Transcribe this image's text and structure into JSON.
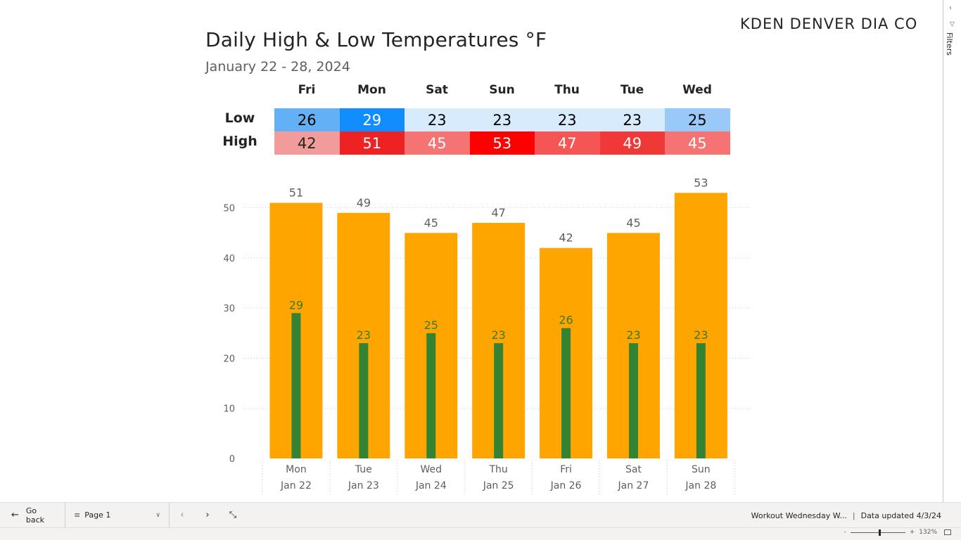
{
  "header": {
    "title": "Daily High & Low Temperatures °F",
    "subtitle": "January 22 - 28, 2024",
    "station": "KDEN DENVER DIA CO"
  },
  "matrix": {
    "columns": [
      "Fri",
      "Mon",
      "Sat",
      "Sun",
      "Thu",
      "Tue",
      "Wed"
    ],
    "rows": [
      {
        "label": "Low",
        "values": [
          "26",
          "29",
          "23",
          "23",
          "23",
          "23",
          "25"
        ],
        "fills": [
          "#64b0f6",
          "#118dff",
          "#d8ebfd",
          "#d8ebfd",
          "#d8ebfd",
          "#d8ebfd",
          "#99c9f8"
        ],
        "text_colors": [
          "#000000",
          "#ffffff",
          "#000000",
          "#000000",
          "#000000",
          "#000000",
          "#000000"
        ]
      },
      {
        "label": "High",
        "values": [
          "42",
          "51",
          "45",
          "53",
          "47",
          "49",
          "45"
        ],
        "fills": [
          "#f19b9b",
          "#ee2222",
          "#f57373",
          "#ff0000",
          "#f55555",
          "#f03838",
          "#f57373"
        ],
        "text_colors": [
          "#252423",
          "#ffffff",
          "#ffffff",
          "#ffffff",
          "#ffffff",
          "#ffffff",
          "#ffffff"
        ]
      }
    ]
  },
  "chart_data": {
    "type": "bar",
    "categories": [
      [
        "Mon",
        "Jan 22"
      ],
      [
        "Tue",
        "Jan 23"
      ],
      [
        "Wed",
        "Jan 24"
      ],
      [
        "Thu",
        "Jan 25"
      ],
      [
        "Fri",
        "Jan 26"
      ],
      [
        "Sat",
        "Jan 27"
      ],
      [
        "Sun",
        "Jan 28"
      ]
    ],
    "series": [
      {
        "values": [
          51,
          49,
          45,
          47,
          42,
          45,
          53
        ],
        "color": "#ffa500",
        "label_color": "#605e5c"
      },
      {
        "values": [
          29,
          23,
          25,
          23,
          26,
          23,
          23
        ],
        "color": "#348333",
        "label_color": "#3b7a1f"
      }
    ],
    "ylim": [
      0,
      55
    ],
    "yticks": [
      0,
      10,
      20,
      30,
      40,
      50
    ],
    "grid": true,
    "legend": "none"
  },
  "filters_pane": {
    "label": "Filters"
  },
  "footer": {
    "go_back": "Go back",
    "page": "Page 1",
    "report_name": "Workout Wednesday W...",
    "separator": "|",
    "data_updated": "Data updated 4/3/24",
    "zoom": "132%"
  }
}
